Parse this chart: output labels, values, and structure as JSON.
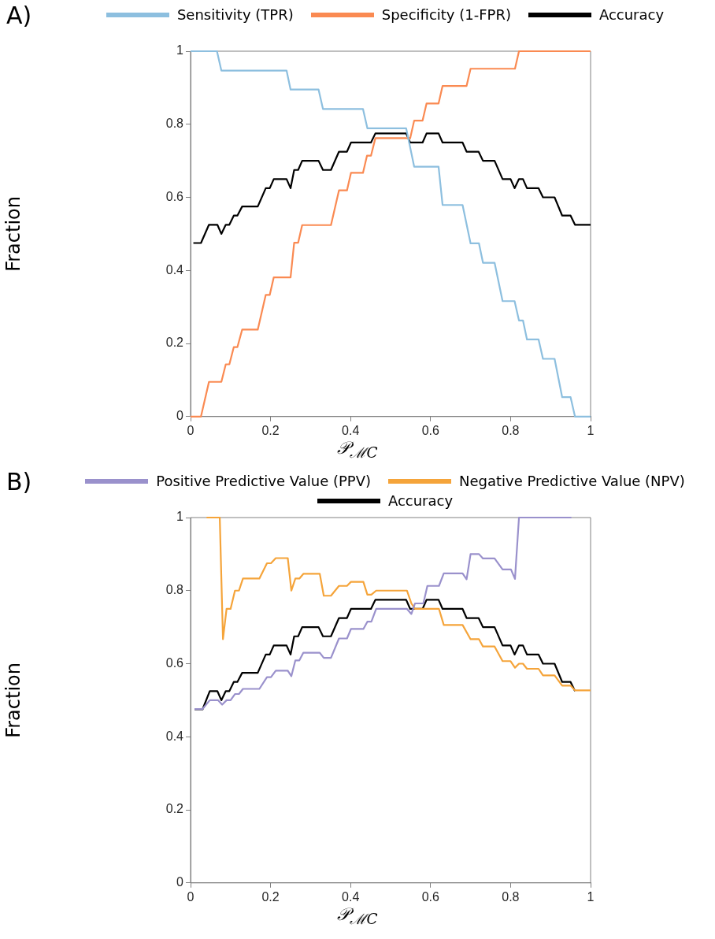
{
  "chart_data": [
    {
      "type": "line",
      "title": "A)",
      "xlabel": "𝒫$_{ℳ}$$_{C}$",
      "ylabel": "Fraction",
      "xlim": [
        0,
        1
      ],
      "ylim": [
        0,
        1
      ],
      "xticks": [
        0,
        0.2,
        0.4,
        0.6,
        0.8,
        1
      ],
      "yticks": [
        0,
        0.2,
        0.4,
        0.6,
        0.8,
        1
      ],
      "grid": false,
      "legend": "top",
      "marker": "none",
      "line_style": "solid",
      "series": [
        {
          "name": "Sensitivity (TPR)",
          "color": "#8dbfdf",
          "x": [
            0,
            0.066,
            0.077,
            0.24,
            0.25,
            0.32,
            0.331,
            0.431,
            0.442,
            0.539,
            0.559,
            0.62,
            0.63,
            0.68,
            0.7,
            0.721,
            0.731,
            0.76,
            0.78,
            0.81,
            0.821,
            0.831,
            0.841,
            0.87,
            0.881,
            0.91,
            0.929,
            0.95,
            0.961,
            1
          ],
          "values": [
            1,
            1,
            0.947,
            0.947,
            0.895,
            0.895,
            0.842,
            0.842,
            0.789,
            0.789,
            0.684,
            0.684,
            0.579,
            0.579,
            0.474,
            0.474,
            0.421,
            0.421,
            0.316,
            0.316,
            0.263,
            0.263,
            0.211,
            0.211,
            0.158,
            0.158,
            0.053,
            0.053,
            0,
            0
          ]
        },
        {
          "name": "Specificity (1-FPR)",
          "color": "#fa8a52",
          "x": [
            0,
            0.026,
            0.046,
            0.077,
            0.088,
            0.097,
            0.108,
            0.117,
            0.129,
            0.168,
            0.188,
            0.198,
            0.208,
            0.25,
            0.259,
            0.269,
            0.279,
            0.351,
            0.371,
            0.391,
            0.401,
            0.431,
            0.441,
            0.451,
            0.462,
            0.549,
            0.559,
            0.58,
            0.59,
            0.62,
            0.63,
            0.69,
            0.7,
            0.811,
            0.821,
            1
          ],
          "values": [
            0,
            0,
            0.095,
            0.095,
            0.143,
            0.143,
            0.19,
            0.19,
            0.238,
            0.238,
            0.333,
            0.333,
            0.381,
            0.381,
            0.476,
            0.476,
            0.524,
            0.524,
            0.619,
            0.619,
            0.667,
            0.667,
            0.714,
            0.714,
            0.762,
            0.762,
            0.81,
            0.81,
            0.857,
            0.857,
            0.905,
            0.905,
            0.952,
            0.952,
            1,
            1
          ]
        },
        {
          "name": "Accuracy",
          "color": "#000000",
          "x": [
            0.007,
            0.026,
            0.046,
            0.067,
            0.077,
            0.088,
            0.097,
            0.108,
            0.117,
            0.129,
            0.168,
            0.188,
            0.198,
            0.208,
            0.24,
            0.25,
            0.259,
            0.269,
            0.279,
            0.32,
            0.331,
            0.351,
            0.371,
            0.391,
            0.401,
            0.451,
            0.462,
            0.539,
            0.549,
            0.58,
            0.59,
            0.62,
            0.63,
            0.68,
            0.69,
            0.72,
            0.731,
            0.76,
            0.78,
            0.8,
            0.81,
            0.821,
            0.831,
            0.841,
            0.87,
            0.881,
            0.91,
            0.929,
            0.95,
            0.961,
            1
          ],
          "values": [
            0.475,
            0.475,
            0.525,
            0.525,
            0.5,
            0.525,
            0.525,
            0.55,
            0.55,
            0.575,
            0.575,
            0.625,
            0.625,
            0.65,
            0.65,
            0.625,
            0.675,
            0.675,
            0.7,
            0.7,
            0.675,
            0.675,
            0.725,
            0.725,
            0.75,
            0.75,
            0.775,
            0.775,
            0.75,
            0.75,
            0.775,
            0.775,
            0.75,
            0.75,
            0.725,
            0.725,
            0.7,
            0.7,
            0.65,
            0.65,
            0.625,
            0.65,
            0.65,
            0.625,
            0.625,
            0.6,
            0.6,
            0.55,
            0.55,
            0.525,
            0.525
          ]
        }
      ]
    },
    {
      "type": "line",
      "title": "B)",
      "xlabel": "𝒫$_{ℳ}$$_{C}$",
      "ylabel": "Fraction",
      "xlim": [
        0,
        1
      ],
      "ylim": [
        0,
        1
      ],
      "xticks": [
        0,
        0.2,
        0.4,
        0.6,
        0.8,
        1
      ],
      "yticks": [
        0,
        0.2,
        0.4,
        0.6,
        0.8,
        1
      ],
      "grid": false,
      "legend": "top",
      "marker": "none",
      "line_style": "solid",
      "series": [
        {
          "name": "Positive Predictive Value (PPV)",
          "color": "#9a91cc",
          "x": [
            0.01,
            0.03,
            0.048,
            0.069,
            0.079,
            0.09,
            0.1,
            0.111,
            0.121,
            0.131,
            0.172,
            0.191,
            0.201,
            0.213,
            0.243,
            0.252,
            0.262,
            0.272,
            0.282,
            0.323,
            0.333,
            0.351,
            0.371,
            0.391,
            0.401,
            0.432,
            0.442,
            0.452,
            0.464,
            0.541,
            0.552,
            0.561,
            0.582,
            0.592,
            0.621,
            0.633,
            0.68,
            0.69,
            0.7,
            0.721,
            0.731,
            0.76,
            0.78,
            0.801,
            0.811,
            0.821,
            0.952
          ],
          "values": [
            0.476,
            0.476,
            0.5,
            0.5,
            0.488,
            0.5,
            0.5,
            0.517,
            0.517,
            0.531,
            0.531,
            0.563,
            0.563,
            0.581,
            0.581,
            0.566,
            0.609,
            0.609,
            0.63,
            0.63,
            0.616,
            0.616,
            0.669,
            0.669,
            0.695,
            0.695,
            0.715,
            0.715,
            0.75,
            0.75,
            0.736,
            0.765,
            0.765,
            0.813,
            0.813,
            0.847,
            0.847,
            0.831,
            0.9,
            0.9,
            0.888,
            0.888,
            0.858,
            0.858,
            0.832,
            1,
            1
          ]
        },
        {
          "name": "Negative Predictive Value (NPV)",
          "color": "#f5a43a",
          "x": [
            0.04,
            0.073,
            0.081,
            0.09,
            0.1,
            0.111,
            0.121,
            0.131,
            0.172,
            0.191,
            0.201,
            0.213,
            0.243,
            0.252,
            0.262,
            0.272,
            0.282,
            0.323,
            0.333,
            0.351,
            0.371,
            0.391,
            0.401,
            0.432,
            0.442,
            0.452,
            0.464,
            0.541,
            0.552,
            0.561,
            0.582,
            0.592,
            0.621,
            0.633,
            0.68,
            0.7,
            0.721,
            0.731,
            0.76,
            0.78,
            0.8,
            0.811,
            0.821,
            0.831,
            0.841,
            0.87,
            0.881,
            0.91,
            0.929,
            0.95,
            0.961,
            1
          ],
          "values": [
            1,
            1,
            0.667,
            0.75,
            0.75,
            0.8,
            0.8,
            0.833,
            0.833,
            0.875,
            0.875,
            0.889,
            0.889,
            0.8,
            0.833,
            0.833,
            0.846,
            0.846,
            0.786,
            0.786,
            0.813,
            0.813,
            0.824,
            0.824,
            0.789,
            0.789,
            0.8,
            0.8,
            0.765,
            0.75,
            0.75,
            0.75,
            0.75,
            0.706,
            0.706,
            0.667,
            0.667,
            0.647,
            0.647,
            0.607,
            0.607,
            0.589,
            0.6,
            0.6,
            0.586,
            0.586,
            0.568,
            0.568,
            0.54,
            0.54,
            0.527,
            0.527
          ]
        },
        {
          "name": "Accuracy",
          "color": "#000000",
          "x": [
            0.01,
            0.03,
            0.048,
            0.067,
            0.077,
            0.088,
            0.097,
            0.108,
            0.117,
            0.129,
            0.168,
            0.188,
            0.198,
            0.208,
            0.24,
            0.25,
            0.259,
            0.269,
            0.279,
            0.32,
            0.331,
            0.351,
            0.371,
            0.391,
            0.401,
            0.451,
            0.462,
            0.539,
            0.549,
            0.58,
            0.59,
            0.62,
            0.63,
            0.68,
            0.69,
            0.72,
            0.731,
            0.76,
            0.78,
            0.8,
            0.81,
            0.821,
            0.831,
            0.841,
            0.87,
            0.881,
            0.91,
            0.929,
            0.95,
            0.961
          ],
          "values": [
            0.475,
            0.475,
            0.525,
            0.525,
            0.5,
            0.525,
            0.525,
            0.55,
            0.55,
            0.575,
            0.575,
            0.625,
            0.625,
            0.65,
            0.65,
            0.625,
            0.675,
            0.675,
            0.7,
            0.7,
            0.675,
            0.675,
            0.725,
            0.725,
            0.75,
            0.75,
            0.775,
            0.775,
            0.75,
            0.75,
            0.775,
            0.775,
            0.75,
            0.75,
            0.725,
            0.725,
            0.7,
            0.7,
            0.65,
            0.65,
            0.625,
            0.65,
            0.65,
            0.625,
            0.625,
            0.6,
            0.6,
            0.55,
            0.55,
            0.525
          ]
        }
      ]
    }
  ]
}
